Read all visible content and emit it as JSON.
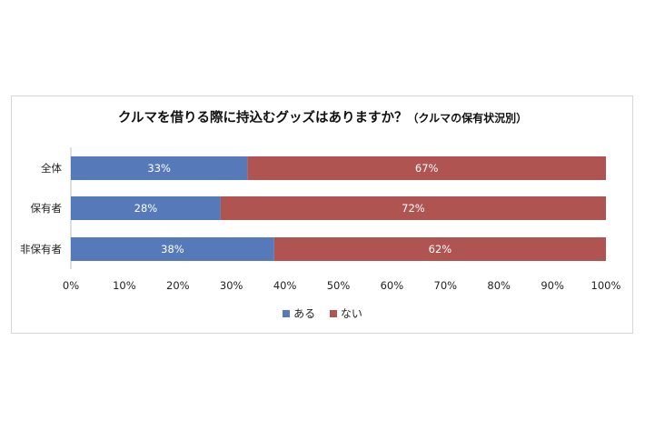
{
  "chart_data": {
    "type": "bar",
    "orientation": "horizontal",
    "stacked": true,
    "title": "クルマを借りる際に持込むグッズはありますか？",
    "subtitle": "（クルマの保有状況別）",
    "categories": [
      "全体",
      "保有者",
      "非保有者"
    ],
    "series": [
      {
        "name": "ある",
        "values": [
          33,
          28,
          38
        ],
        "labels": [
          "33%",
          "28%",
          "38%"
        ]
      },
      {
        "name": "ない",
        "values": [
          67,
          72,
          62
        ],
        "labels": [
          "67%",
          "72%",
          "62%"
        ]
      }
    ],
    "xlim": [
      0,
      100
    ],
    "x_ticks": [
      "0%",
      "10%",
      "20%",
      "30%",
      "40%",
      "50%",
      "60%",
      "70%",
      "80%",
      "90%",
      "100%"
    ],
    "grid": false,
    "legend_position": "bottom"
  },
  "colors": {
    "ある": "#5579b9",
    "ない": "#b05452"
  }
}
